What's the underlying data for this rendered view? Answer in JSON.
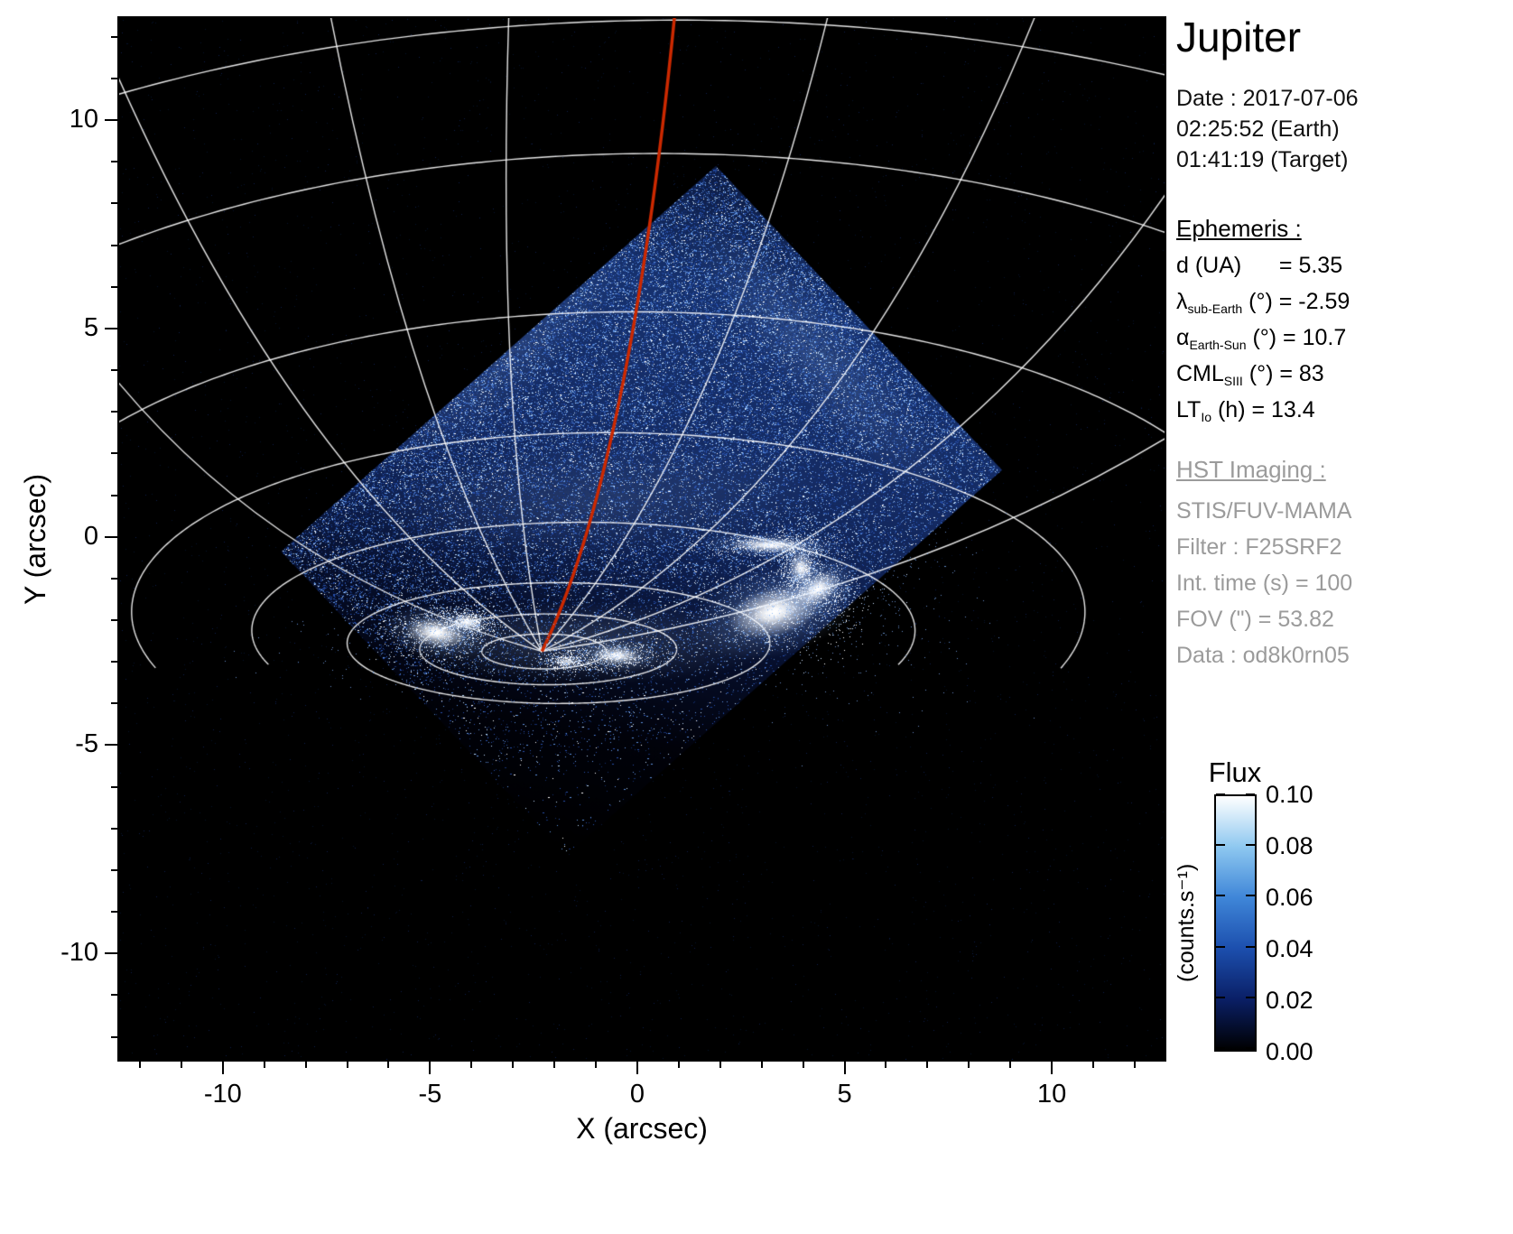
{
  "title": "Jupiter",
  "panel": {
    "date_block": {
      "line1": "Date : 2017-07-06",
      "line2": "02:25:52 (Earth)",
      "line3": "01:41:19 (Target)"
    },
    "ephemeris": {
      "heading": "Ephemeris :",
      "rows": [
        {
          "base": "d (UA)",
          "sub": "",
          "rest": "      = 5.35"
        },
        {
          "base": "λ",
          "sub": "sub-Earth",
          "rest": " (°) = -2.59"
        },
        {
          "base": "α",
          "sub": "Earth-Sun",
          "rest": " (°) = 10.7"
        },
        {
          "base": "CML",
          "sub": "SIII",
          "rest": " (°) = 83"
        },
        {
          "base": "LT",
          "sub": "Io",
          "rest": " (h) = 13.4"
        }
      ]
    },
    "hst": {
      "heading": "HST Imaging :",
      "lines": [
        "STIS/FUV-MAMA",
        "Filter : F25SRF2",
        "Int. time (s) = 100",
        "FOV (\") = 53.82",
        "Data : od8k0rn05"
      ]
    }
  },
  "colorbar": {
    "title": "Flux",
    "unit": "(counts.s⁻¹)",
    "ticks": [
      "0.10",
      "0.08",
      "0.06",
      "0.04",
      "0.02",
      "0.00"
    ],
    "gradient_top_to_bottom": [
      "#ffffff",
      "#8ec8f0",
      "#3f86d8",
      "#1c4fae",
      "#0a1f66",
      "#000000"
    ]
  },
  "chart_data": {
    "type": "heatmap",
    "title": "Jupiter",
    "xlabel": "X (arcsec)",
    "ylabel": "Y (arcsec)",
    "xlim": [
      -12.5,
      12.72
    ],
    "ylim": [
      -12.55,
      12.45
    ],
    "xticks": [
      -10,
      -5,
      0,
      5,
      10
    ],
    "yticks": [
      -10,
      -5,
      0,
      5,
      10
    ],
    "minor_tick_step": 1,
    "grid": "planetary graticule overlay (white), CML meridian in red",
    "colorbar": {
      "label": "Flux",
      "unit": "(counts.s⁻¹)",
      "min": 0.0,
      "max": 0.1,
      "ticks": [
        0.0,
        0.02,
        0.04,
        0.06,
        0.08,
        0.1
      ]
    },
    "detector_diamond": [
      [
        1.9,
        8.9
      ],
      [
        8.8,
        1.6
      ],
      [
        -8.6,
        -0.35
      ]
    ],
    "pole": [
      -2.3,
      -2.75
    ],
    "latitude_ellipses": [
      {
        "cx": -2.25,
        "cy": -2.75,
        "a": 1.5,
        "b": 0.42
      },
      {
        "cx": -2.15,
        "cy": -2.7,
        "a": 3.1,
        "b": 0.85
      },
      {
        "cx": -1.9,
        "cy": -2.55,
        "a": 5.1,
        "b": 1.45
      },
      {
        "cx": -1.3,
        "cy": -2.25,
        "a": 8.0,
        "b": 2.6
      },
      {
        "cx": -0.7,
        "cy": -1.8,
        "a": 11.5,
        "b": 4.3
      },
      {
        "cx": -0.1,
        "cy": -1.2,
        "a": 15.5,
        "b": 6.6
      },
      {
        "cx": 0.5,
        "cy": -0.4,
        "a": 20.5,
        "b": 9.6
      },
      {
        "cx": 1.0,
        "cy": 0.2,
        "a": 26.0,
        "b": 12.2
      }
    ],
    "meridians": [
      {
        "control": [
          -8.2,
          1.3
        ],
        "to": [
          -12.6,
          11.2
        ]
      },
      {
        "control": [
          -8.6,
          -1.0
        ],
        "to": [
          -12.6,
          3.8
        ]
      },
      {
        "control": [
          -5.4,
          2.4
        ],
        "to": [
          -7.4,
          12.5
        ]
      },
      {
        "control": [
          -3.4,
          3.0
        ],
        "to": [
          -3.1,
          12.5
        ]
      },
      {
        "control": [
          2.0,
          2.1
        ],
        "to": [
          4.6,
          12.5
        ]
      },
      {
        "control": [
          4.9,
          1.0
        ],
        "to": [
          9.6,
          12.5
        ]
      },
      {
        "control": [
          6.8,
          -0.3
        ],
        "to": [
          12.8,
          8.3
        ]
      },
      {
        "control": [
          6.3,
          -1.5
        ],
        "to": [
          12.8,
          2.4
        ]
      }
    ],
    "red_meridian": {
      "from": [
        -2.3,
        -2.75
      ],
      "control": [
        -0.2,
        1.5
      ],
      "to": [
        0.9,
        12.5
      ],
      "color": "#cc2900",
      "width": 3.5
    },
    "bright_spots": [
      {
        "x": 3.3,
        "y": -1.8,
        "rx": 1.15,
        "ry": 0.6,
        "rot": -0.25,
        "alpha": 1
      },
      {
        "x": 4.35,
        "y": -1.25,
        "rx": 0.6,
        "ry": 0.35,
        "rot": -0.5,
        "alpha": 0.95
      },
      {
        "x": 3.2,
        "y": -0.2,
        "rx": 0.95,
        "ry": 0.18,
        "rot": 0.03,
        "alpha": 0.95
      },
      {
        "x": 3.95,
        "y": -0.75,
        "rx": 0.3,
        "ry": 0.4,
        "rot": 0,
        "alpha": 0.8
      },
      {
        "x": -4.85,
        "y": -2.3,
        "rx": 0.75,
        "ry": 0.35,
        "rot": 0.15,
        "alpha": 1
      },
      {
        "x": -4.1,
        "y": -2.05,
        "rx": 0.4,
        "ry": 0.2,
        "rot": 0.1,
        "alpha": 0.85
      },
      {
        "x": -0.5,
        "y": -2.85,
        "rx": 0.6,
        "ry": 0.22,
        "rot": 0.05,
        "alpha": 0.9
      },
      {
        "x": -1.7,
        "y": -3.0,
        "rx": 0.35,
        "ry": 0.15,
        "rot": 0,
        "alpha": 0.55
      }
    ],
    "inner_glows": [
      {
        "x": 4.4,
        "y": 4.3,
        "rx": 4.5,
        "ry": 1.1,
        "alpha": 0.16,
        "rot": 0.82
      },
      {
        "x": -1.0,
        "y": 0.9,
        "rx": 5.5,
        "ry": 1.4,
        "alpha": 0.12,
        "rot": -0.05
      },
      {
        "x": -3.1,
        "y": 4.3,
        "rx": 3.8,
        "ry": 0.95,
        "alpha": 0.11,
        "rot": 2.42
      },
      {
        "x": -1.2,
        "y": -2.55,
        "rx": 4.6,
        "ry": 1.0,
        "alpha": 0.2,
        "rot": 0
      }
    ],
    "render": {
      "seed": 7,
      "speckles": 90000,
      "background_dots": 4000,
      "palette": [
        "#ffffff",
        "#b9d9f8",
        "#5e92e0",
        "#2750ac",
        "#142f6e"
      ],
      "base_gradient": [
        [
          0,
          "#0d1b42"
        ],
        [
          0.18,
          "#17326f"
        ],
        [
          0.42,
          "#142a62"
        ],
        [
          0.56,
          "#0e1f4e"
        ],
        [
          0.68,
          "#060e2a"
        ],
        [
          0.82,
          "#01020a"
        ],
        [
          1,
          "#000000"
        ]
      ]
    }
  }
}
